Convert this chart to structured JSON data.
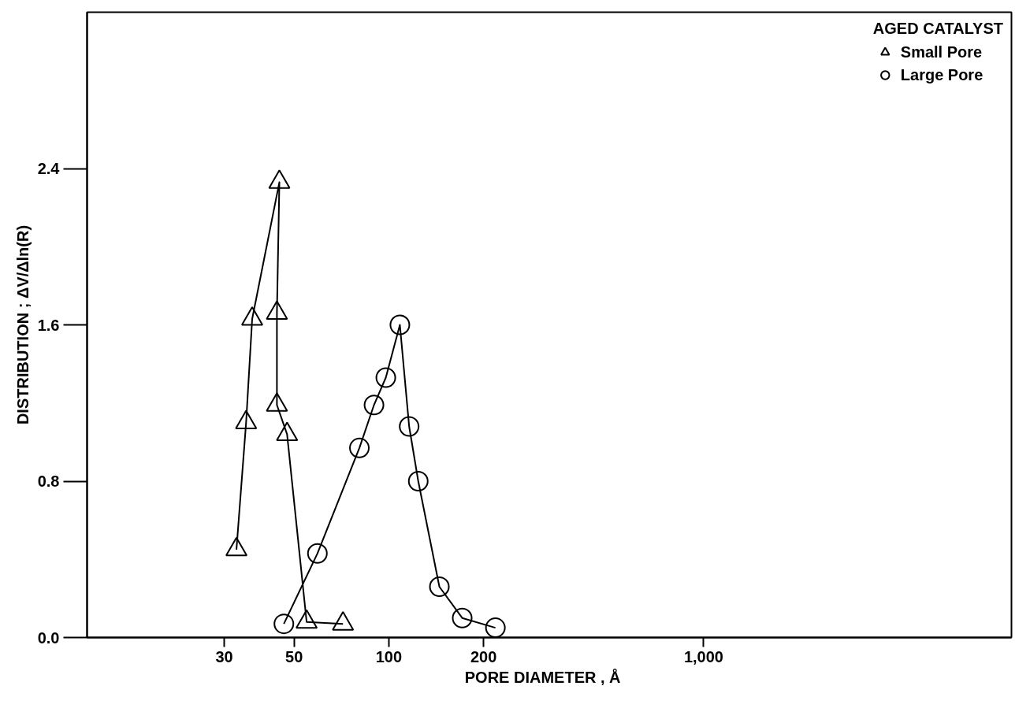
{
  "chart_data": {
    "type": "line",
    "xlabel": "PORE    DIAMETER , Å",
    "ylabel": "DISTRIBUTION ; ΔV/Δln(R)",
    "legend_title": "AGED CATALYST",
    "legend": "top right",
    "log": "x",
    "grid": false,
    "xlim": [
      11,
      9500
    ],
    "xticks": [
      30,
      50,
      100,
      200,
      {
        "value": 1000,
        "label": "1,000"
      }
    ],
    "ylim": [
      0,
      3.2
    ],
    "yticks": [
      {
        "value": 0,
        "label": "0.0"
      },
      0.8,
      1.6,
      2.4
    ],
    "series": [
      {
        "name": "Small Pore",
        "color": "#000000",
        "marker": "triangle",
        "x": [
          32.8,
          35.2,
          36.8,
          44.9,
          44.1,
          44.1,
          47.5,
          54.8,
          71.5
        ],
        "values": [
          0.45,
          1.1,
          1.63,
          2.33,
          1.66,
          1.19,
          1.04,
          0.08,
          0.07
        ]
      },
      {
        "name": "Large Pore",
        "color": "#000000",
        "marker": "circle",
        "x": [
          46.4,
          59.3,
          80.6,
          89.7,
          97.8,
          108.4,
          116,
          124,
          144.7,
          171,
          218
        ],
        "values": [
          0.07,
          0.43,
          0.97,
          1.19,
          1.33,
          1.6,
          1.08,
          0.8,
          0.26,
          0.1,
          0.05
        ]
      }
    ]
  }
}
